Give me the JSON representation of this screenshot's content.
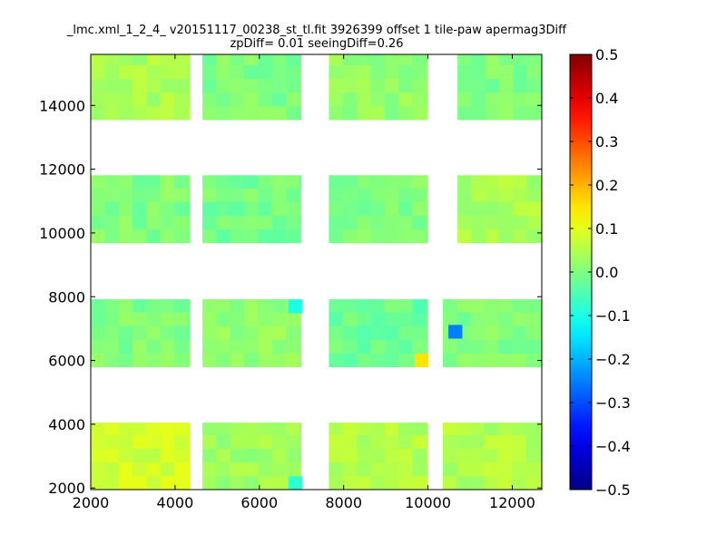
{
  "chart_data": {
    "type": "heatmap",
    "title_line1": "_lmc.xml_1_2_4_ v20151117_00238_st_tl.fit 3926399 offset 1 tile-paw apermag3Diff",
    "title_line2": "zpDiff= 0.01 seeingDiff=0.26",
    "xlabel": "",
    "ylabel": "",
    "xlim": [
      2000,
      12700
    ],
    "ylim": [
      1950,
      15600
    ],
    "x_ticks": [
      2000,
      4000,
      6000,
      8000,
      10000,
      12000
    ],
    "y_ticks": [
      2000,
      4000,
      6000,
      8000,
      10000,
      12000,
      14000
    ],
    "colorbar": {
      "colormap": "jet",
      "range": [
        -0.5,
        0.5
      ],
      "ticks": [
        0.5,
        0.4,
        0.3,
        0.2,
        0.1,
        0.0,
        -0.1,
        -0.2,
        -0.3,
        -0.4,
        -0.5
      ],
      "tick_labels": [
        "0.5",
        "0.4",
        "0.3",
        "0.2",
        "0.1",
        "0.0",
        "−0.1",
        "−0.2",
        "−0.3",
        "−0.4",
        "−0.5"
      ]
    },
    "grid": false,
    "cell_size": [
      330,
      430
    ],
    "blocks": [
      {
        "x0": 2000,
        "x1": 4350,
        "y0": 13550,
        "y1": 15600,
        "value": 0.04
      },
      {
        "x0": 4650,
        "x1": 6990,
        "y0": 13550,
        "y1": 15600,
        "value": 0.0
      },
      {
        "x0": 7650,
        "x1": 9990,
        "y0": 13550,
        "y1": 15600,
        "value": 0.02
      },
      {
        "x0": 10700,
        "x1": 12700,
        "y0": 13550,
        "y1": 15600,
        "value": 0.0
      },
      {
        "x0": 2000,
        "x1": 4350,
        "y0": 9690,
        "y1": 11810,
        "value": 0.0
      },
      {
        "x0": 4650,
        "x1": 6990,
        "y0": 9690,
        "y1": 11810,
        "value": -0.01
      },
      {
        "x0": 7650,
        "x1": 9990,
        "y0": 9690,
        "y1": 11810,
        "value": 0.0
      },
      {
        "x0": 10700,
        "x1": 12700,
        "y0": 9690,
        "y1": 11810,
        "value": 0.04
      },
      {
        "x0": 2000,
        "x1": 4350,
        "y0": 5800,
        "y1": 7920,
        "value": 0.0
      },
      {
        "x0": 4650,
        "x1": 6990,
        "y0": 5800,
        "y1": 7920,
        "value": 0.02
      },
      {
        "x0": 7650,
        "x1": 9990,
        "y0": 5800,
        "y1": 7920,
        "value": -0.02
      },
      {
        "x0": 10350,
        "x1": 12700,
        "y0": 5800,
        "y1": 7920,
        "value": 0.0
      },
      {
        "x0": 2000,
        "x1": 4350,
        "y0": 1950,
        "y1": 4050,
        "value": 0.08
      },
      {
        "x0": 4650,
        "x1": 6990,
        "y0": 1950,
        "y1": 4050,
        "value": 0.03
      },
      {
        "x0": 7650,
        "x1": 9990,
        "y0": 1950,
        "y1": 4050,
        "value": 0.05
      },
      {
        "x0": 10350,
        "x1": 12700,
        "y0": 1950,
        "y1": 4050,
        "value": 0.05
      }
    ],
    "notable_cells": [
      {
        "x": 10650,
        "y": 6900,
        "value": -0.25
      },
      {
        "x": 9850,
        "y": 6000,
        "value": 0.15
      },
      {
        "x": 6850,
        "y": 7700,
        "value": -0.1
      },
      {
        "x": 6850,
        "y": 2150,
        "value": -0.08
      },
      {
        "x": 9800,
        "y": 7700,
        "value": -0.05
      }
    ]
  }
}
